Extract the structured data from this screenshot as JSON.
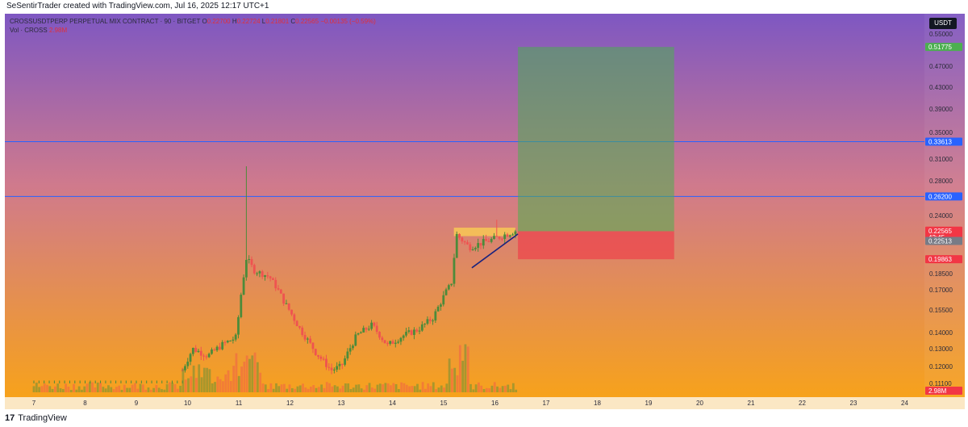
{
  "header": {
    "created_by": "SeSentirTrader created with TradingView.com, Jul 16, 2025 12:17 UTC+1"
  },
  "legend": {
    "symbol_line": "CROSSUSDTPERP PERPETUAL MIX CONTRACT · 90 · BITGET",
    "o_label": "O",
    "o_value": "0.22700",
    "h_label": "H",
    "h_value": "0.22724",
    "l_label": "L",
    "l_value": "0.21801",
    "c_label": "C",
    "c_value": "0.22565",
    "change": "−0.00135 (−0.59%)",
    "vol_label": "Vol · CROSS",
    "vol_value": "2.98M"
  },
  "currency_label": "USDT",
  "footer": {
    "brand": "TradingView"
  },
  "colors": {
    "bg_top": "#7e57c2",
    "bg_mid": "#d07a8c",
    "bg_bottom": "#f7a21b",
    "up": "#26a69a",
    "up_candle": "#4c8b3a",
    "down": "#ef5350",
    "hline": "#2962ff",
    "target_zone": "#4caf50",
    "stop_zone": "#f23645",
    "pattern_zone": "#ffd54f"
  },
  "chart_data": {
    "type": "candlestick",
    "x_tick_labels": [
      "7",
      "8",
      "9",
      "10",
      "11",
      "12",
      "13",
      "14",
      "15",
      "16",
      "17",
      "18",
      "19",
      "20",
      "21",
      "22",
      "23",
      "24"
    ],
    "y_tick_labels": [
      "0.55000",
      "0.47000",
      "0.43000",
      "0.39000",
      "0.35000",
      "0.31000",
      "0.28000",
      "0.24000",
      "0.18500",
      "0.17000",
      "0.15500",
      "0.14000",
      "0.13000",
      "0.12000",
      "0.11100"
    ],
    "ylim": [
      0.106,
      0.56
    ],
    "price_tags": [
      {
        "value": "0.51775",
        "color": "#4caf50"
      },
      {
        "value": "0.33613",
        "color": "#2962ff"
      },
      {
        "value": "0.26200",
        "color": "#2962ff"
      },
      {
        "value": "0.22565",
        "sub": "42:45",
        "color": "#f23645"
      },
      {
        "value": "0.22513",
        "color": "#787b86"
      },
      {
        "value": "0.19863",
        "color": "#f23645"
      },
      {
        "value": "2.98M",
        "color": "#f23645"
      }
    ],
    "horizontal_lines": [
      0.33613,
      0.262
    ],
    "position": {
      "entry": 0.22513,
      "target": 0.51775,
      "stop": 0.19863,
      "start_day": 16.45,
      "end_day": 19.5
    },
    "triangle": {
      "zone_top": 0.2285,
      "zone_bottom": 0.2205,
      "start_day": 15.2,
      "end_day": 16.4,
      "trend_from": [
        15.55,
        0.1905
      ],
      "trend_to": [
        16.45,
        0.2225
      ]
    }
  }
}
